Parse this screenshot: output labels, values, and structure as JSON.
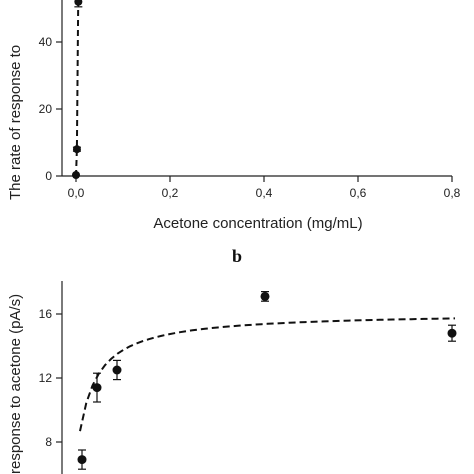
{
  "chart_data": [
    {
      "type": "scatter",
      "panel_label": "",
      "xlabel": "Acetone concentration (mg/mL)",
      "ylabel": "The rate of response to",
      "xlim": [
        -0.03,
        0.8
      ],
      "ylim": [
        0,
        60
      ],
      "x_ticks": [
        0.0,
        0.2,
        0.4,
        0.6,
        0.8
      ],
      "x_tick_labels": [
        "0,0",
        "0,2",
        "0,4",
        "0,6",
        "0,8"
      ],
      "y_ticks": [
        0,
        20,
        40
      ],
      "y_tick_labels": [
        "0",
        "20",
        "40"
      ],
      "grid": false,
      "series": [
        {
          "points": [
            {
              "x": 0.0,
              "y": 0.3,
              "err": 0
            },
            {
              "x": 0.002,
              "y": 8,
              "err": 0.6
            },
            {
              "x": 0.005,
              "y": 52,
              "err": 1.5
            }
          ],
          "fit_curve": {
            "style": "dashed",
            "points": [
              [
                0.0,
                0
              ],
              [
                0.002,
                8
              ],
              [
                0.003,
                25
              ],
              [
                0.004,
                42
              ],
              [
                0.005,
                55
              ],
              [
                0.006,
                62
              ]
            ]
          }
        }
      ]
    },
    {
      "type": "scatter",
      "panel_label": "b",
      "xlabel": "",
      "ylabel": "response to acetone (pA/s)",
      "ylim": [
        5.5,
        18
      ],
      "y_ticks": [
        8,
        12,
        16
      ],
      "y_tick_labels": [
        "8",
        "12",
        "16"
      ],
      "grid": false,
      "series": [
        {
          "points": [
            {
              "x": 0.0,
              "y": 6.9,
              "err": 0.6
            },
            {
              "x": 0.01,
              "y": 11.4,
              "err": 0.9
            },
            {
              "x": 0.02,
              "y": 12.5,
              "err": 0.6
            },
            {
              "x": 0.1,
              "y": 17.1,
              "err": 0.3
            },
            {
              "x": 0.2,
              "y": 14.8,
              "err": 0.5
            }
          ],
          "fit_curve": {
            "style": "dashed"
          }
        }
      ]
    }
  ]
}
